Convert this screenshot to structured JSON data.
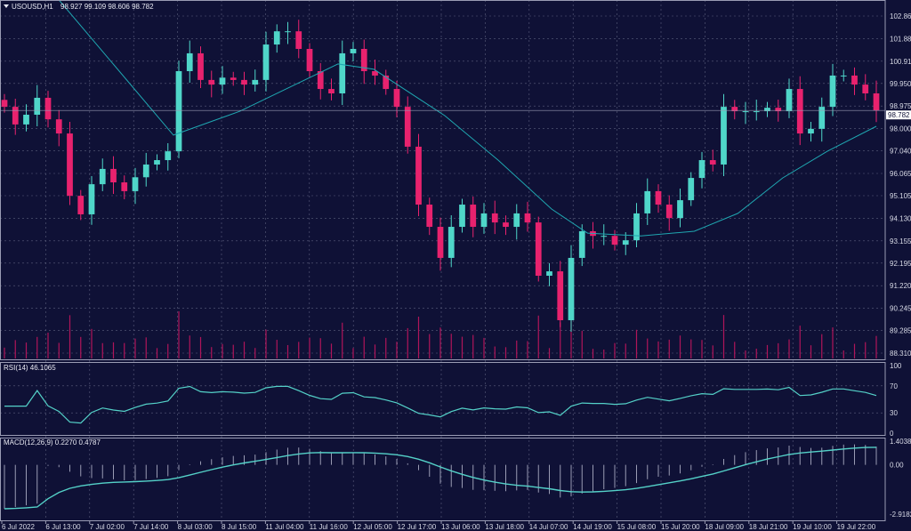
{
  "chart_data": {
    "type": "candlestick",
    "symbol_header": "USOUSD,H1",
    "ohlc_header": "98.927 99.109 98.606 98.782",
    "last_price_label": "98.782",
    "colors": {
      "background": "#0f1136",
      "bull": "#4fd6c9",
      "bear": "#e8226e",
      "ma": "#1fa6b0",
      "grid": "#5c607e",
      "indicator": "#54d1c8",
      "volume": "#b0155a"
    },
    "price_axis": {
      "ylim": [
        88.31,
        102.86
      ],
      "ticks": [
        "102.860",
        "101.885",
        "100.910",
        "99.950",
        "98.975",
        "98.000",
        "97.040",
        "96.065",
        "95.105",
        "94.130",
        "93.155",
        "92.195",
        "91.220",
        "90.245",
        "89.285",
        "88.310"
      ]
    },
    "time_axis": {
      "ticks": [
        "6 Jul 2022",
        "6 Jul 13:00",
        "7 Jul 02:00",
        "7 Jul 14:00",
        "8 Jul 03:00",
        "8 Jul 15:00",
        "11 Jul 04:00",
        "11 Jul 16:00",
        "12 Jul 05:00",
        "12 Jul 17:00",
        "13 Jul 06:00",
        "13 Jul 18:00",
        "14 Jul 07:00",
        "14 Jul 19:00",
        "15 Jul 08:00",
        "15 Jul 20:00",
        "18 Jul 09:00",
        "18 Jul 21:00",
        "19 Jul 10:00",
        "19 Jul 22:00"
      ]
    },
    "close": [
      98.94,
      98.18,
      98.6,
      99.33,
      98.4,
      97.79,
      95.1,
      94.3,
      95.6,
      96.26,
      95.68,
      95.3,
      95.9,
      96.45,
      96.64,
      97.02,
      100.48,
      101.25,
      100.1,
      99.9,
      100.2,
      100.1,
      99.9,
      100.1,
      101.63,
      102.2,
      102.2,
      101.44,
      100.48,
      99.71,
      99.52,
      101.25,
      101.44,
      100.48,
      100.29,
      99.71,
      98.94,
      97.22,
      94.72,
      93.76,
      92.42,
      93.76,
      94.72,
      93.76,
      94.34,
      93.95,
      93.76,
      94.34,
      93.95,
      91.65,
      91.84,
      89.73,
      92.42,
      93.57,
      93.37,
      93.37,
      92.99,
      93.18,
      94.34,
      95.3,
      94.72,
      94.14,
      94.91,
      95.87,
      96.64,
      96.45,
      98.94,
      98.75,
      98.75,
      98.75,
      98.9,
      98.75,
      99.71,
      97.79,
      97.99,
      98.94,
      100.29,
      100.29,
      99.9,
      99.52,
      98.782
    ],
    "moving_average": [
      [
        5,
        103.55
      ],
      [
        15.5,
        97.72
      ],
      [
        21.6,
        98.75
      ],
      [
        30.6,
        100.79
      ],
      [
        33.9,
        100.56
      ],
      [
        40.4,
        98.56
      ],
      [
        45.3,
        96.64
      ],
      [
        50.2,
        94.53
      ],
      [
        53.5,
        93.49
      ],
      [
        58.4,
        93.37
      ],
      [
        63.3,
        93.57
      ],
      [
        67.3,
        94.34
      ],
      [
        71.4,
        95.87
      ],
      [
        75.5,
        97.02
      ],
      [
        80,
        98.1
      ]
    ],
    "rsi": {
      "label": "RSI(14) 46.1065",
      "ticks": [
        "100",
        "70",
        "30",
        "0"
      ],
      "ylim": [
        0,
        100
      ]
    },
    "macd": {
      "label": "MACD(12,26,9) 0.2270 0.4787",
      "ticks": [
        "1.4038",
        "0.00",
        "-2.9182"
      ],
      "ylim": [
        -2.9182,
        1.4038
      ]
    }
  }
}
